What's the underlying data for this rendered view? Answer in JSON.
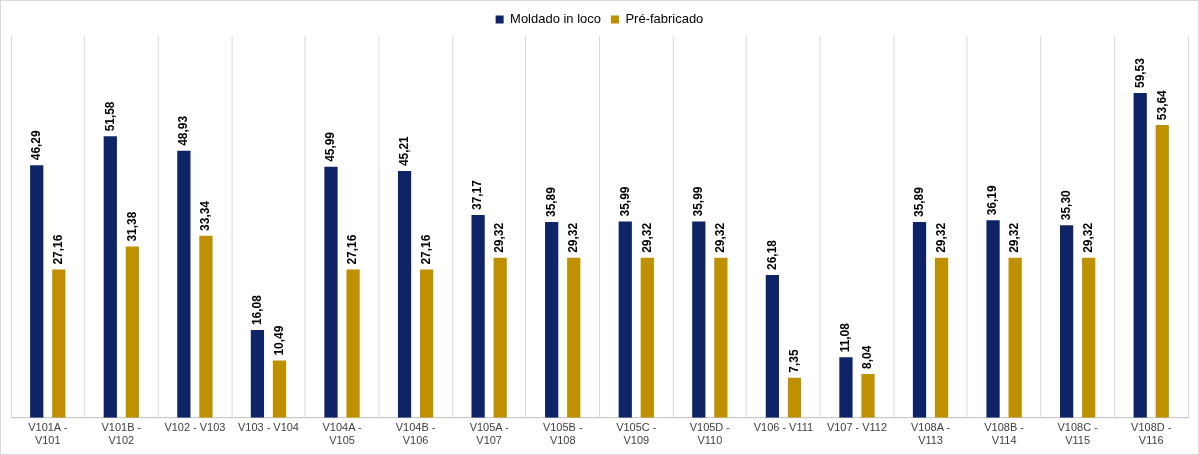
{
  "chart_data": {
    "type": "bar",
    "categories": [
      "V101A - V101",
      "V101B - V102",
      "V102 - V103",
      "V103 - V104",
      "V104A - V105",
      "V104B - V106",
      "V105A - V107",
      "V105B - V108",
      "V105C - V109",
      "V105D - V110",
      "V106 - V111",
      "V107 - V112",
      "V108A - V113",
      "V108B - V114",
      "V108C - V115",
      "V108D - V116"
    ],
    "series": [
      {
        "name": "Moldado in loco",
        "color": "#0e2466",
        "values": [
          46.29,
          51.58,
          48.93,
          16.08,
          45.99,
          45.21,
          37.17,
          35.89,
          35.99,
          35.99,
          26.18,
          11.08,
          35.89,
          36.19,
          35.3,
          59.53
        ],
        "value_labels": [
          "46,29",
          "51,58",
          "48,93",
          "16,08",
          "45,99",
          "45,21",
          "37,17",
          "35,89",
          "35,99",
          "35,99",
          "26,18",
          "11,08",
          "35,89",
          "36,19",
          "35,30",
          "59,53"
        ]
      },
      {
        "name": "Pré-fabricado",
        "color": "#bf9000",
        "values": [
          27.16,
          31.38,
          33.34,
          10.49,
          27.16,
          27.16,
          29.32,
          29.32,
          29.32,
          29.32,
          7.35,
          8.04,
          29.32,
          29.32,
          29.32,
          53.64
        ],
        "value_labels": [
          "27,16",
          "31,38",
          "33,34",
          "10,49",
          "27,16",
          "27,16",
          "29,32",
          "29,32",
          "29,32",
          "29,32",
          "7,35",
          "8,04",
          "29,32",
          "29,32",
          "29,32",
          "53,64"
        ]
      }
    ],
    "grid": "x",
    "legend": "top",
    "tick_labels": "x"
  }
}
